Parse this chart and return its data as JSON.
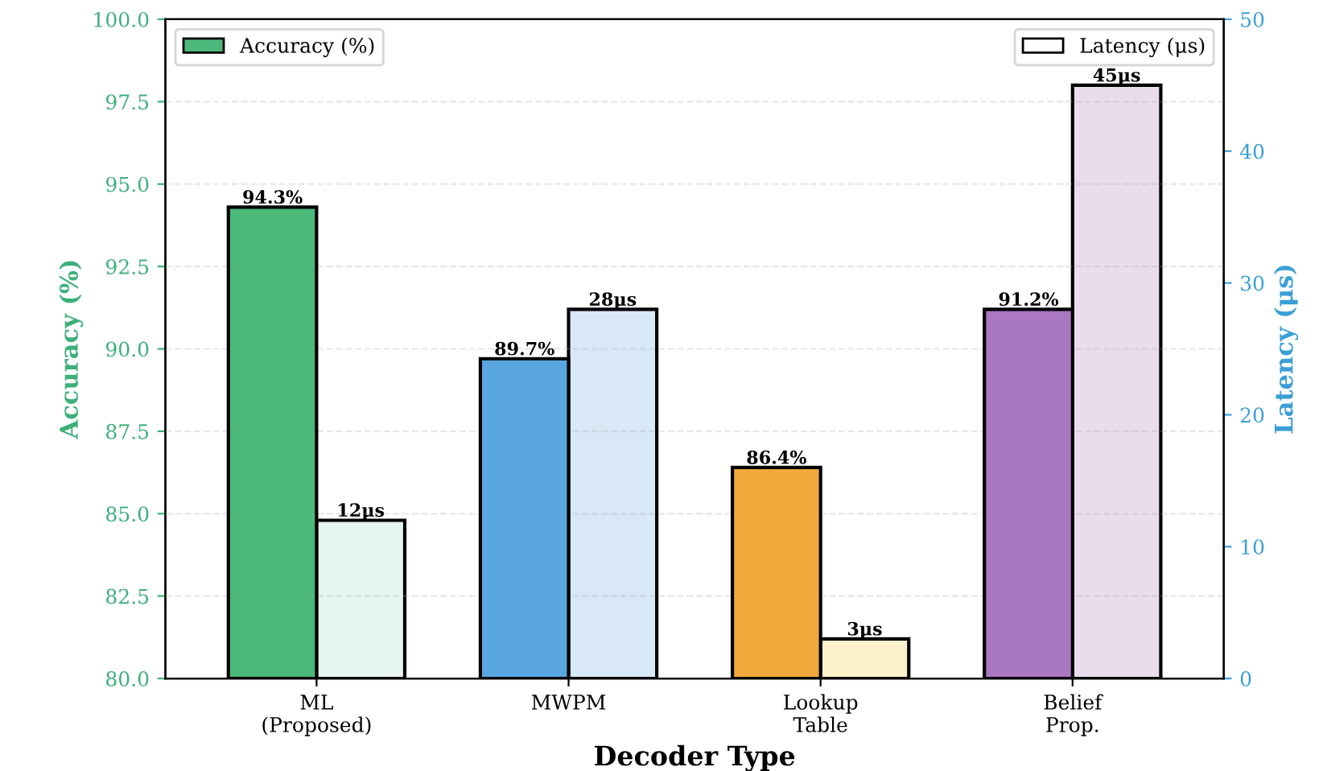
{
  "chart_data": {
    "type": "bar",
    "xlabel": "Decoder Type",
    "ylabel": "Accuracy (%)",
    "y2label": "Latency (μs)",
    "categories": [
      "ML\n(Proposed)",
      "MWPM",
      "Lookup\nTable",
      "Belief\nProp."
    ],
    "series": [
      {
        "name": "Accuracy (%)",
        "color": "#4cb87a",
        "colors": [
          "#4cb87a",
          "#5aa6e0",
          "#f2a93c",
          "#aa77c2"
        ],
        "values": [
          94.3,
          89.7,
          86.4,
          91.2
        ],
        "value_labels": [
          "94.3%",
          "89.7%",
          "86.4%",
          "91.2%"
        ]
      },
      {
        "name": "Latency (μs)",
        "color": "#ffffff",
        "axis": "y2",
        "colors": [
          "#e6f4f2",
          "#d8e8f6",
          "#fbf2cc",
          "#eadcec"
        ],
        "values": [
          12,
          28,
          3,
          45
        ],
        "value_labels": [
          "12μs",
          "28μs",
          "3μs",
          "45μs"
        ]
      }
    ],
    "ylim": [
      80,
      100
    ],
    "yticks": [
      {
        "value": 80,
        "label": "80.0"
      },
      {
        "value": 82.5,
        "label": "82.5"
      },
      {
        "value": 85,
        "label": "85.0"
      },
      {
        "value": 87.5,
        "label": "87.5"
      },
      {
        "value": 90,
        "label": "90.0"
      },
      {
        "value": 92.5,
        "label": "92.5"
      },
      {
        "value": 95,
        "label": "95.0"
      },
      {
        "value": 97.5,
        "label": "97.5"
      },
      {
        "value": 100,
        "label": "100.0"
      }
    ],
    "y2lim": [
      0,
      50
    ],
    "y2ticks": [
      0,
      10,
      20,
      30,
      40,
      50
    ],
    "grid": "y",
    "legend": "top"
  }
}
